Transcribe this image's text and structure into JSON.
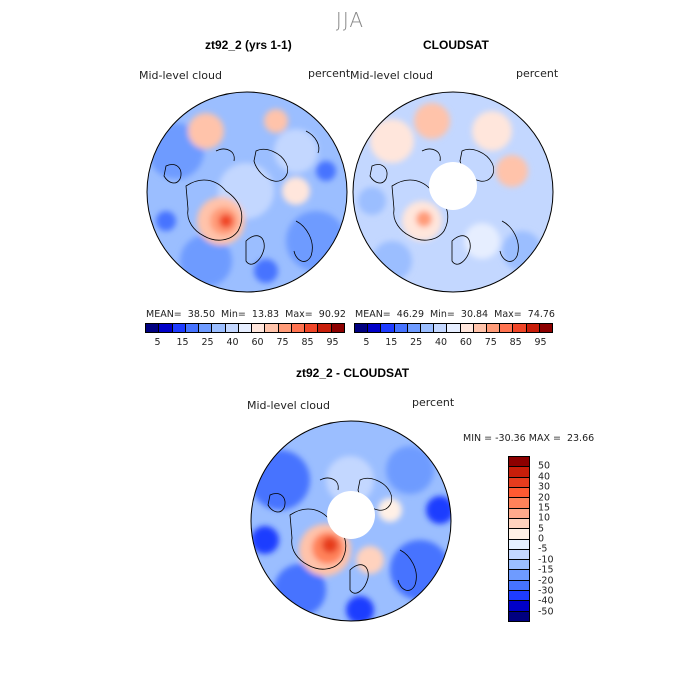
{
  "season": "JJA",
  "panel_left": {
    "title": "zt92_2 (yrs 1-1)",
    "variable": "Mid-level cloud",
    "units": "percent",
    "stats": "MEAN=  38.50  Min=  13.83  Max=  90.92"
  },
  "panel_right": {
    "title": "CLOUDSAT",
    "variable": "Mid-level cloud",
    "units": "percent",
    "stats": "MEAN=  46.29  Min=  30.84  Max=  74.76"
  },
  "panel_diff": {
    "title": "zt92_2 - CLOUDSAT",
    "variable": "Mid-level cloud",
    "units": "percent",
    "stats": "MIN = -30.36 MAX =  23.66"
  },
  "abs_colorbar": {
    "colors": [
      "#000080",
      "#0000c8",
      "#1e3cff",
      "#4673ff",
      "#6e9bff",
      "#9bbeff",
      "#c3d7ff",
      "#e6eeff",
      "#ffe6dc",
      "#ffc3aa",
      "#ff9b78",
      "#ff7350",
      "#f04628",
      "#c81e0a",
      "#8c0000"
    ],
    "tick_labels": [
      "5",
      "15",
      "25",
      "40",
      "60",
      "75",
      "85",
      "95"
    ]
  },
  "diff_colorbar": {
    "colors": [
      "#8c0000",
      "#c81e0a",
      "#e63c1e",
      "#ff5a32",
      "#ff825a",
      "#ffaa8c",
      "#ffd2be",
      "#fff0e6",
      "#e6f0ff",
      "#c3d7ff",
      "#9bbeff",
      "#6e9bff",
      "#4673ff",
      "#1e3cff",
      "#0000c8",
      "#000080"
    ],
    "tick_labels": [
      "50",
      "40",
      "30",
      "20",
      "15",
      "10",
      "5",
      "0",
      "-5",
      "-10",
      "-15",
      "-20",
      "-30",
      "-40",
      "-50"
    ]
  }
}
